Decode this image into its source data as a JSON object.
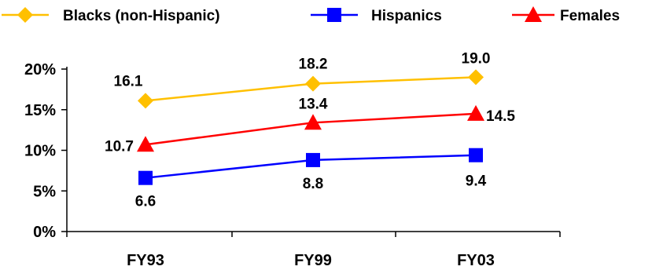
{
  "chart_data": {
    "type": "line",
    "title": "",
    "xlabel": "",
    "ylabel": "",
    "categories": [
      "FY93",
      "FY99",
      "FY03"
    ],
    "ylim": [
      0,
      20
    ],
    "yticks": [
      0,
      5,
      10,
      15,
      20
    ],
    "ytick_labels": [
      "0%",
      "5%",
      "10%",
      "15%",
      "20%"
    ],
    "grid": false,
    "legend_position": "top",
    "series": [
      {
        "name": "Blacks (non-Hispanic)",
        "values": [
          16.1,
          18.2,
          19.0
        ],
        "labels": [
          "16.1",
          "18.2",
          "19.0"
        ],
        "color": "#FFC000",
        "marker": "diamond"
      },
      {
        "name": "Hispanics",
        "values": [
          6.6,
          8.8,
          9.4
        ],
        "labels": [
          "6.6",
          "8.8",
          "9.4"
        ],
        "color": "#0000FF",
        "marker": "square"
      },
      {
        "name": "Females",
        "values": [
          10.7,
          13.4,
          14.5
        ],
        "labels": [
          "10.7",
          "13.4",
          "14.5"
        ],
        "color": "#FF0000",
        "marker": "triangle"
      }
    ]
  }
}
